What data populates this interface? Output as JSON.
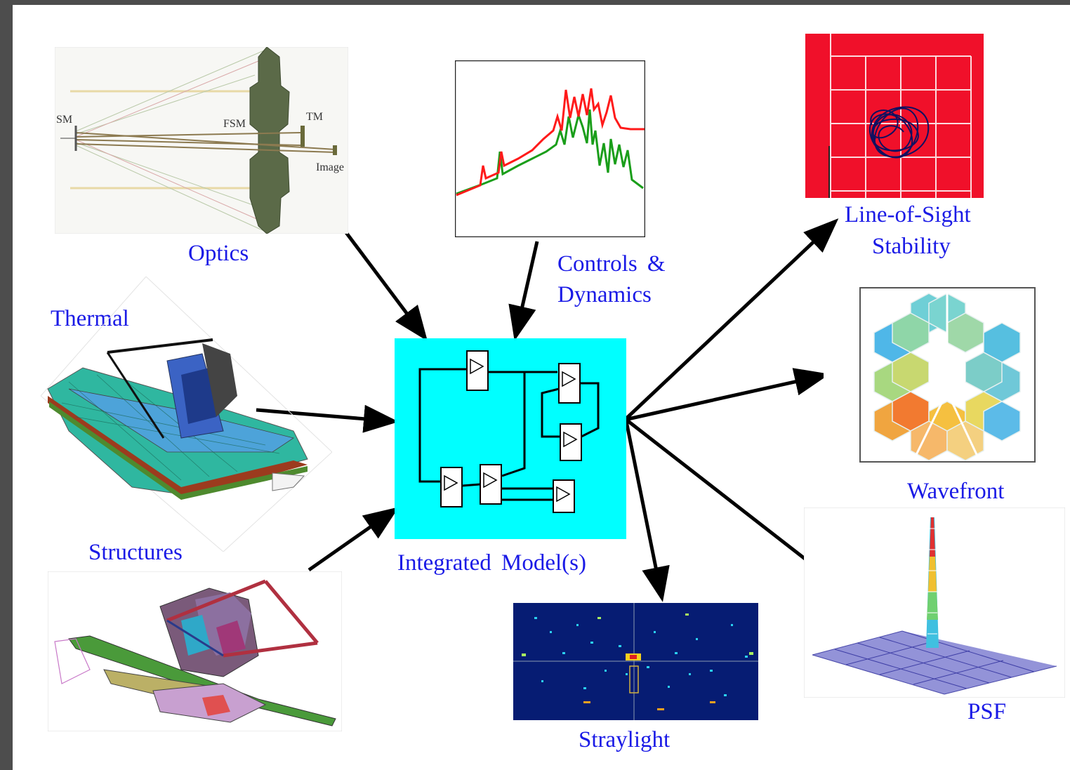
{
  "labels": {
    "optics": "Optics",
    "controls_line1": "Controls &",
    "controls_line2": "Dynamics",
    "los_line1": "Line-of-Sight",
    "los_line2": "Stability",
    "thermal": "Thermal",
    "wavefront": "Wavefront",
    "integrated": "Integrated Model(s)",
    "structures": "Structures",
    "straylight": "Straylight",
    "psf": "PSF"
  },
  "optics_callouts": {
    "sm": "SM",
    "fsm": "FSM",
    "tm": "TM",
    "image": "Image"
  },
  "colors": {
    "label_text": "#1a1ae6",
    "integrated_bg": "#00ffff",
    "los_bg": "#f0102a",
    "los_trace": "#101060",
    "controls_red": "#ff1a1a",
    "controls_green": "#1a9e1a",
    "straylight_bg": "#061c73",
    "arrow": "#000000"
  },
  "icons": [
    "optics-ray-trace-image",
    "controls-frequency-plot-image",
    "los-jitter-plot-image",
    "thermal-model-image",
    "block-diagram-image",
    "wavefront-map-image",
    "structures-fem-image",
    "straylight-map-image",
    "psf-surface-image"
  ]
}
